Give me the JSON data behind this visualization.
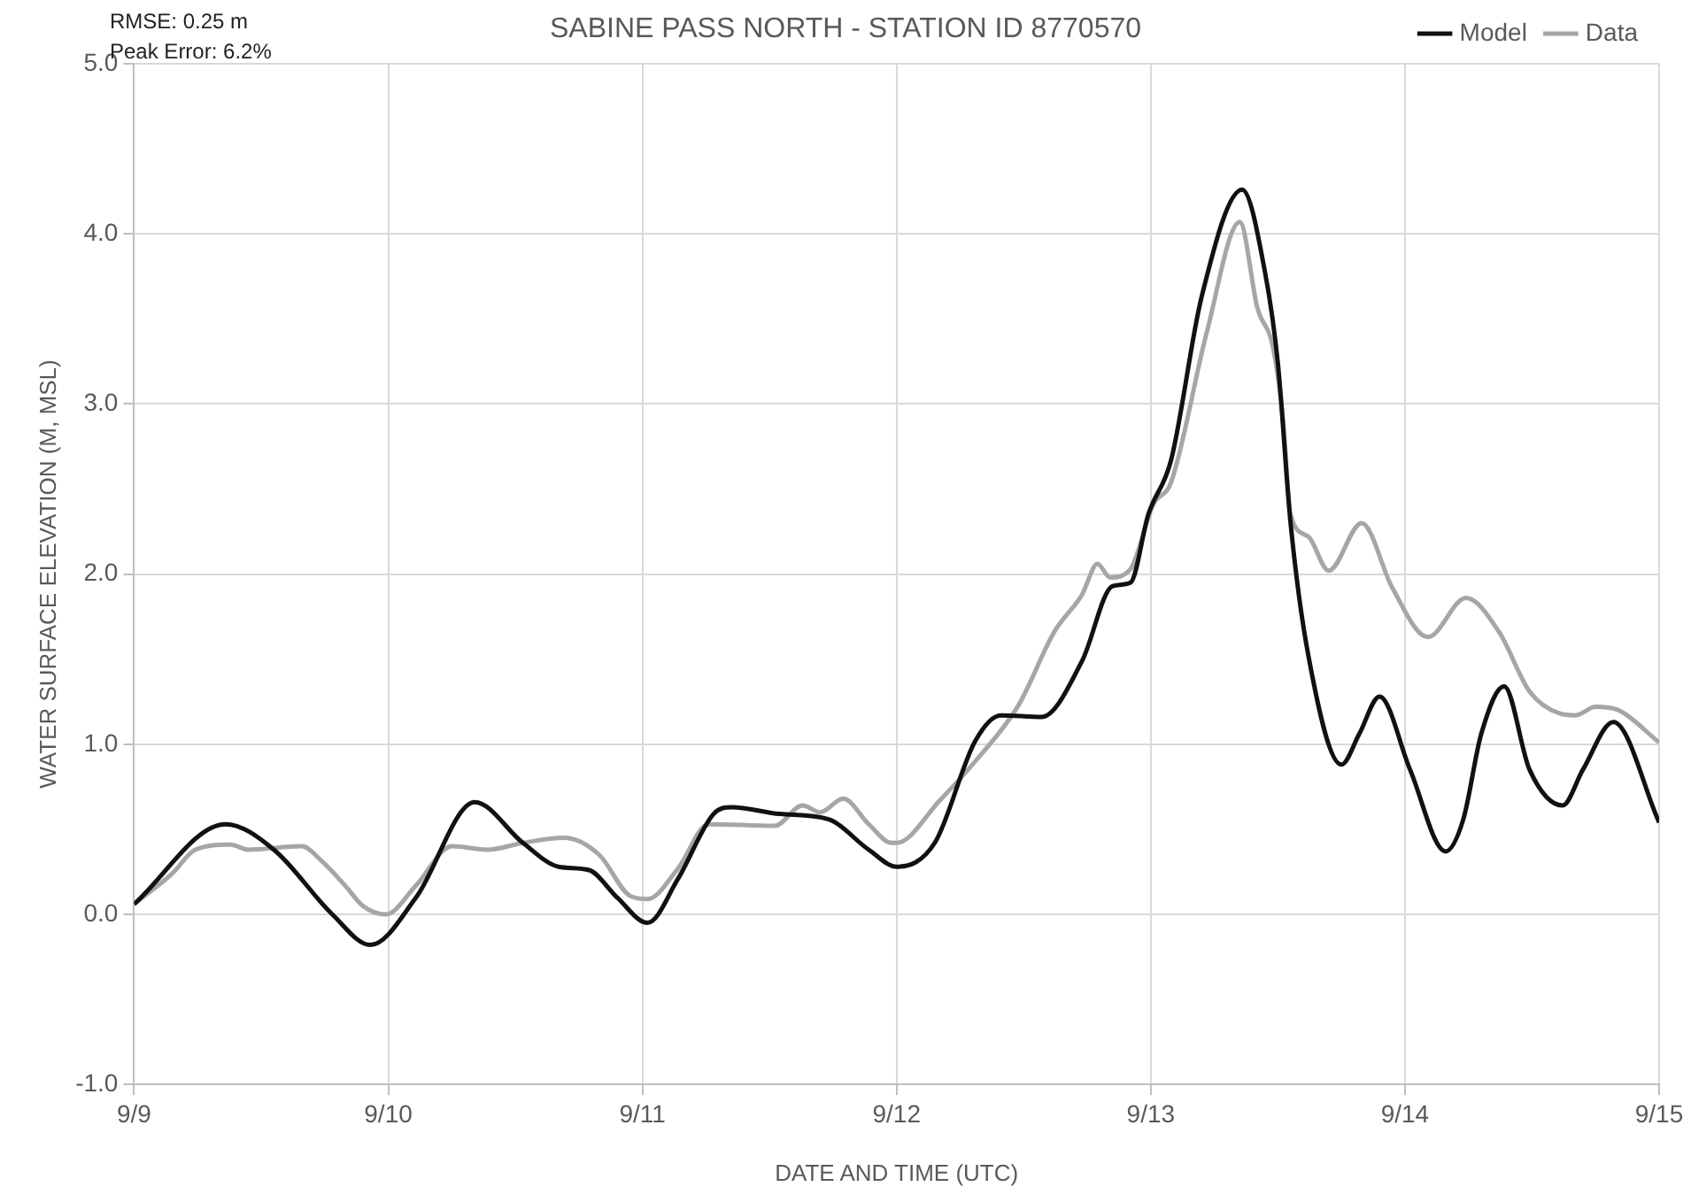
{
  "chart_data": {
    "type": "line",
    "title": "SABINE PASS NORTH - STATION ID 8770570",
    "xlabel": "DATE AND TIME (UTC)",
    "ylabel": "WATER SURFACE ELEVATION (M, MSL)",
    "annotations": [
      "RMSE: 0.25 m",
      "Peak Error: 6.2%"
    ],
    "xlim": [
      "--09-09",
      "--09-15"
    ],
    "xticks": [
      {
        "value": "--09-09",
        "label": "9/9"
      },
      {
        "value": "--09-10",
        "label": "9/10"
      },
      {
        "value": "--09-11",
        "label": "9/11"
      },
      {
        "value": "--09-12",
        "label": "9/12"
      },
      {
        "value": "--09-13",
        "label": "9/13"
      },
      {
        "value": "--09-14",
        "label": "9/14"
      },
      {
        "value": "--09-15",
        "label": "9/15"
      }
    ],
    "ylim": [
      -1,
      5
    ],
    "yticks": [
      {
        "value": -1,
        "label": "-1.0"
      },
      {
        "value": 0,
        "label": "0.0"
      },
      {
        "value": 1,
        "label": "1.0"
      },
      {
        "value": 2,
        "label": "2.0"
      },
      {
        "value": 3,
        "label": "3.0"
      },
      {
        "value": 4,
        "label": "4.0"
      },
      {
        "value": 5,
        "label": "5.0"
      }
    ],
    "grid": true,
    "legend": "top right",
    "marker": "none",
    "line_style": "solid",
    "series": [
      {
        "name": "Model",
        "color": "#111111",
        "x": [
          "--09-09T00:00",
          "--09-09T08:38",
          "--09-09T13:12",
          "--09-09T18:43",
          "--09-09T22:19",
          "--09-10T02:38",
          "--09-10T08:10",
          "--09-10T12:43",
          "--09-10T16:05",
          "--09-10T18:58",
          "--09-10T21:36",
          "--09-11T00:29",
          "--09-11T03:22",
          "--09-11T06:43",
          "--09-11T08:24",
          "--09-11T12:58",
          "--09-11T17:31",
          "--09-11T21:22",
          "--09-12T00:00",
          "--09-12T03:36",
          "--09-12T07:26",
          "--09-12T09:50",
          "--09-12T13:41",
          "--09-12T17:31",
          "--09-12T20:24",
          "--09-12T22:05",
          "--09-12T23:46",
          "--09-13T01:55",
          "--09-13T04:48",
          "--09-13T08:38",
          "--09-13T10:48",
          "--09-13T12:00",
          "--09-13T13:12",
          "--09-13T14:53",
          "--09-13T18:00",
          "--09-13T19:41",
          "--09-13T21:36",
          "--09-14T00:29",
          "--09-14T03:50",
          "--09-14T05:31",
          "--09-14T07:12",
          "--09-14T09:22",
          "--09-14T11:46",
          "--09-14T14:53",
          "--09-14T16:48",
          "--09-14T19:41",
          "--09-15T00:00"
        ],
        "values": [
          0.06,
          0.53,
          0.38,
          0.0,
          -0.18,
          0.1,
          0.66,
          0.42,
          0.28,
          0.26,
          0.1,
          -0.05,
          0.21,
          0.59,
          0.63,
          0.59,
          0.56,
          0.38,
          0.28,
          0.42,
          1.02,
          1.17,
          1.16,
          1.49,
          1.93,
          1.95,
          2.35,
          2.67,
          3.63,
          4.26,
          3.77,
          3.24,
          2.3,
          1.52,
          0.88,
          1.06,
          1.28,
          0.85,
          0.37,
          0.56,
          1.06,
          1.34,
          0.85,
          0.64,
          0.85,
          1.13,
          0.54
        ]
      },
      {
        "name": "Data",
        "color": "#a6a6a6",
        "x": [
          "--09-09T00:00",
          "--09-09T03:36",
          "--09-09T05:46",
          "--09-09T09:07",
          "--09-09T10:48",
          "--09-09T15:50",
          "--09-09T17:46",
          "--09-09T19:55",
          "--09-09T21:36",
          "--09-09T23:46",
          "--09-10T02:38",
          "--09-10T06:00",
          "--09-10T09:22",
          "--09-10T12:43",
          "--09-10T16:34",
          "--09-10T19:55",
          "--09-10T22:48",
          "--09-11T00:29",
          "--09-11T03:22",
          "--09-11T06:14",
          "--09-11T12:29",
          "--09-11T15:07",
          "--09-11T16:48",
          "--09-11T18:58",
          "--09-11T21:22",
          "--09-11T23:31",
          "--09-12T00:00",
          "--09-12T04:05",
          "--09-12T07:26",
          "--09-12T11:31",
          "--09-12T14:53",
          "--09-12T17:31",
          "--09-12T18:58",
          "--09-12T20:10",
          "--09-12T22:05",
          "--09-13T00:14",
          "--09-13T01:55",
          "--09-13T05:17",
          "--09-13T08:24",
          "--09-13T10:05",
          "--09-13T11:31",
          "--09-13T12:29",
          "--09-13T13:12",
          "--09-13T14:53",
          "--09-13T16:48",
          "--09-13T19:55",
          "--09-13T22:48",
          "--09-14T02:10",
          "--09-14T05:46",
          "--09-14T08:53",
          "--09-14T11:46",
          "--09-14T14:38",
          "--09-14T16:05",
          "--09-14T18:00",
          "--09-14T20:10",
          "--09-15T00:00"
        ],
        "values": [
          0.06,
          0.24,
          0.38,
          0.41,
          0.38,
          0.4,
          0.31,
          0.17,
          0.05,
          0.0,
          0.17,
          0.4,
          0.38,
          0.42,
          0.45,
          0.35,
          0.11,
          0.09,
          0.27,
          0.53,
          0.52,
          0.64,
          0.6,
          0.68,
          0.53,
          0.42,
          0.42,
          0.67,
          0.9,
          1.23,
          1.66,
          1.88,
          2.06,
          1.98,
          2.03,
          2.41,
          2.54,
          3.42,
          4.07,
          3.56,
          3.34,
          2.91,
          2.35,
          2.22,
          2.02,
          2.3,
          1.92,
          1.63,
          1.86,
          1.66,
          1.31,
          1.18,
          1.17,
          1.22,
          1.2,
          1.01
        ]
      }
    ]
  }
}
